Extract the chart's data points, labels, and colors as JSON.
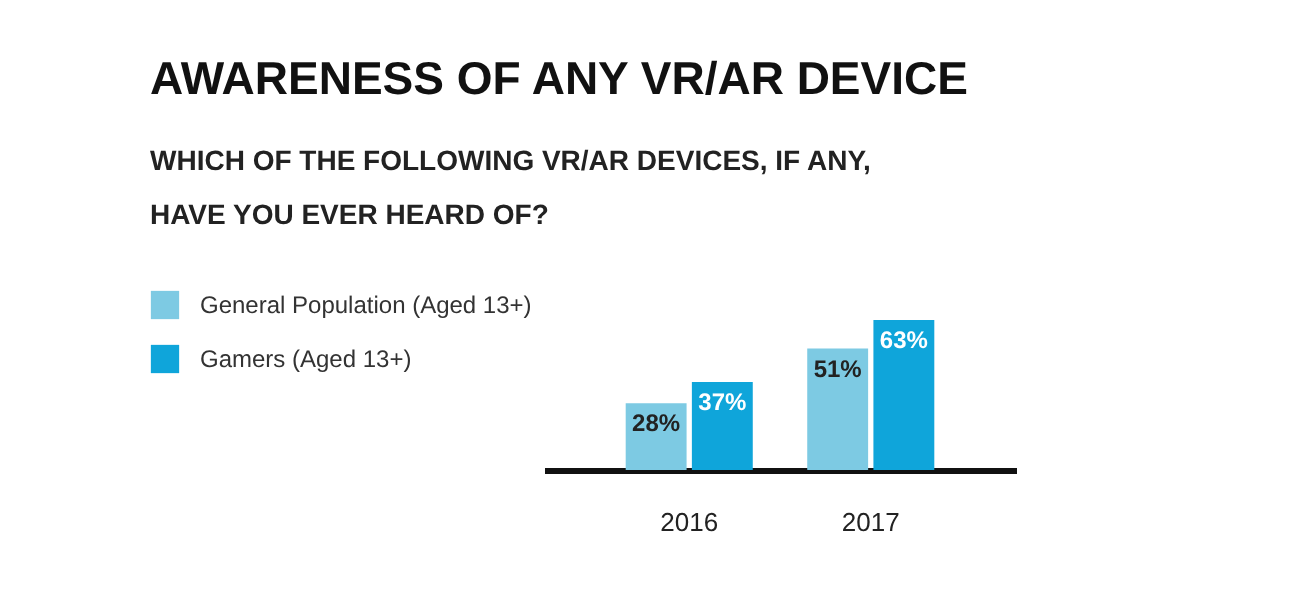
{
  "chart_data": {
    "type": "bar",
    "title": "AWARENESS OF ANY VR/AR DEVICE",
    "subtitle": "WHICH OF THE FOLLOWING VR/AR DEVICES, IF ANY, HAVE YOU EVER HEARD OF?",
    "categories": [
      "2016",
      "2017"
    ],
    "series": [
      {
        "name": "General Population (Aged 13+)",
        "color": "#7dcae3",
        "values": [
          28,
          51
        ],
        "value_labels": [
          "28%",
          "51%"
        ]
      },
      {
        "name": "Gamers (Aged 13+)",
        "color": "#0fa5da",
        "values": [
          37,
          63
        ],
        "value_labels": [
          "37%",
          "63%"
        ]
      }
    ],
    "legend": "left",
    "grid": false
  }
}
